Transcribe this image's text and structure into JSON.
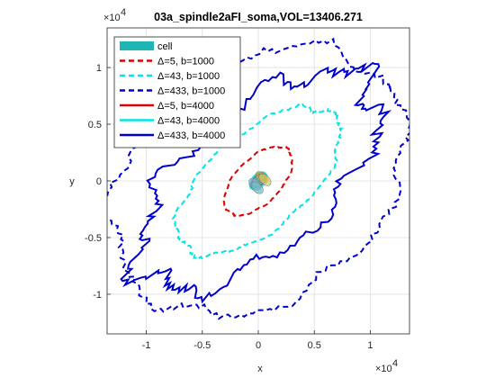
{
  "chart_data": {
    "type": "line",
    "title": "03a_spindle2aFI_soma,VOL=13406.271",
    "xlabel": "x",
    "ylabel": "y",
    "x_exponent_label": "×10",
    "x_exponent": "4",
    "y_exponent_label": "×10",
    "y_exponent": "4",
    "xlim": [
      -1.35,
      1.35
    ],
    "ylim": [
      -1.35,
      1.35
    ],
    "xticks": [
      -1,
      -0.5,
      0,
      0.5,
      1
    ],
    "xtick_labels": [
      "-1",
      "-0.5",
      "0",
      "0.5",
      "1"
    ],
    "yticks": [
      -1,
      -0.5,
      0,
      0.5,
      1
    ],
    "ytick_labels": [
      "-1",
      "-0.5",
      "0",
      "0.5",
      "1"
    ],
    "grid": true,
    "legend_location": "top-left",
    "series": [
      {
        "name": "cell",
        "kind": "patch",
        "color": "#1fb5b5",
        "a": 0.08,
        "b": 0.05,
        "angle": 45,
        "noise": 0
      },
      {
        "name": "Δ=5, b=1000",
        "kind": "dashed",
        "color": "#dd0000",
        "a": 0.38,
        "b": 0.2,
        "angle": 45,
        "noise": 0.02
      },
      {
        "name": "Δ=43, b=1000",
        "kind": "dashed",
        "color": "#00e5e5",
        "a": 0.88,
        "b": 0.43,
        "angle": 40,
        "noise": 0.03
      },
      {
        "name": "Δ=433, b=1000",
        "kind": "dashed",
        "color": "#0000cc",
        "a": 1.42,
        "b": 1.05,
        "angle": 35,
        "noise": 0.04
      },
      {
        "name": "Δ=5, b=4000",
        "kind": "solid",
        "color": "#dd0000",
        "a": 0.07,
        "b": 0.05,
        "angle": 45,
        "noise": 0.01
      },
      {
        "name": "Δ=43, b=4000",
        "kind": "solid",
        "color": "#00e5e5",
        "a": 0.09,
        "b": 0.055,
        "angle": 45,
        "noise": 0.01
      },
      {
        "name": "Δ=433, b=4000",
        "kind": "solid",
        "color": "#0000cc",
        "a": 1.3,
        "b": 0.62,
        "angle": 40,
        "noise": 0.08
      }
    ]
  }
}
